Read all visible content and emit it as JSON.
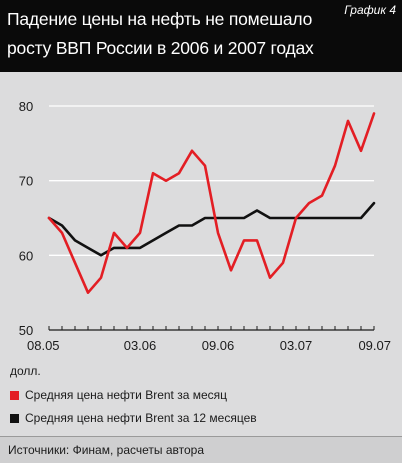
{
  "header": {
    "title": "Падение цены на нефть не помешало росту ВВП России в 2006 и 2007 годах",
    "tag": "График 4"
  },
  "unit_label": "долл.",
  "source": "Источники: Финам, расчеты автора",
  "colors": {
    "monthly": "#e31e24",
    "annual": "#111111",
    "background": "#dcdcdd",
    "header": "#0a0a0a"
  },
  "chart_data": {
    "type": "line",
    "title": "Падение цены на нефть не помешало росту ВВП России в 2006 и 2007 годах",
    "ylabel": "долл.",
    "ylim": [
      50,
      80
    ],
    "yticks": [
      50,
      60,
      70,
      80
    ],
    "x": [
      "08.05",
      "09.05",
      "10.05",
      "11.05",
      "12.05",
      "01.06",
      "02.06",
      "03.06",
      "04.06",
      "05.06",
      "06.06",
      "07.06",
      "08.06",
      "09.06",
      "10.06",
      "11.06",
      "12.06",
      "01.07",
      "02.07",
      "03.07",
      "04.07",
      "05.07",
      "06.07",
      "07.07",
      "08.07",
      "09.07"
    ],
    "xticks": [
      "08.05",
      "03.06",
      "09.06",
      "03.07",
      "09.07"
    ],
    "grid": "horizontal",
    "legend_position": "bottom",
    "series": [
      {
        "name": "Средняя цена нефти Brent за месяц",
        "color": "#e31e24",
        "values": [
          65,
          63,
          59,
          55,
          57,
          63,
          61,
          63,
          71,
          70,
          71,
          74,
          72,
          63,
          58,
          62,
          62,
          57,
          59,
          65,
          67,
          68,
          72,
          78,
          74,
          79
        ]
      },
      {
        "name": "Средняя цена нефти Brent за 12 месяцев",
        "color": "#111111",
        "values": [
          65,
          64,
          62,
          61,
          60,
          61,
          61,
          61,
          62,
          63,
          64,
          64,
          65,
          65,
          65,
          65,
          66,
          65,
          65,
          65,
          65,
          65,
          65,
          65,
          65,
          67
        ]
      }
    ]
  }
}
